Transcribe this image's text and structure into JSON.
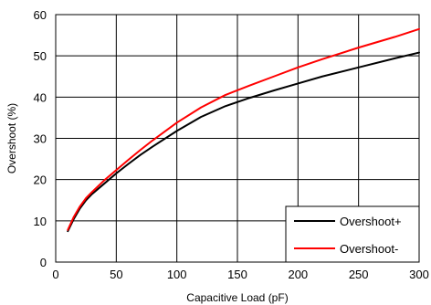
{
  "chart_data": {
    "type": "line",
    "xlabel": "Capacitive Load (pF)",
    "ylabel": "Overshoot (%)",
    "xlim": [
      0,
      300
    ],
    "ylim": [
      0,
      60
    ],
    "xticks": [
      0,
      50,
      100,
      150,
      200,
      250,
      300
    ],
    "yticks": [
      0,
      10,
      20,
      30,
      40,
      50,
      60
    ],
    "grid": true,
    "legend_position": "bottom-right",
    "series": [
      {
        "name": "Overshoot+",
        "color": "#000000",
        "x": [
          10,
          15,
          20,
          25,
          30,
          40,
          50,
          60,
          70,
          80,
          100,
          120,
          140,
          160,
          180,
          200,
          220,
          250,
          280,
          300
        ],
        "y": [
          7.5,
          10.5,
          13.0,
          15.0,
          16.5,
          19.0,
          21.5,
          23.8,
          26.0,
          28.0,
          31.8,
          35.2,
          37.8,
          39.8,
          41.6,
          43.3,
          45.0,
          47.2,
          49.4,
          50.8
        ]
      },
      {
        "name": "Overshoot-",
        "color": "#ff0000",
        "x": [
          10,
          15,
          20,
          25,
          30,
          40,
          50,
          60,
          70,
          80,
          100,
          120,
          140,
          160,
          180,
          200,
          220,
          250,
          280,
          300
        ],
        "y": [
          7.8,
          11.0,
          13.5,
          15.5,
          17.0,
          19.8,
          22.3,
          24.8,
          27.2,
          29.5,
          33.8,
          37.5,
          40.5,
          42.8,
          45.0,
          47.2,
          49.2,
          52.0,
          54.6,
          56.5
        ]
      }
    ]
  }
}
